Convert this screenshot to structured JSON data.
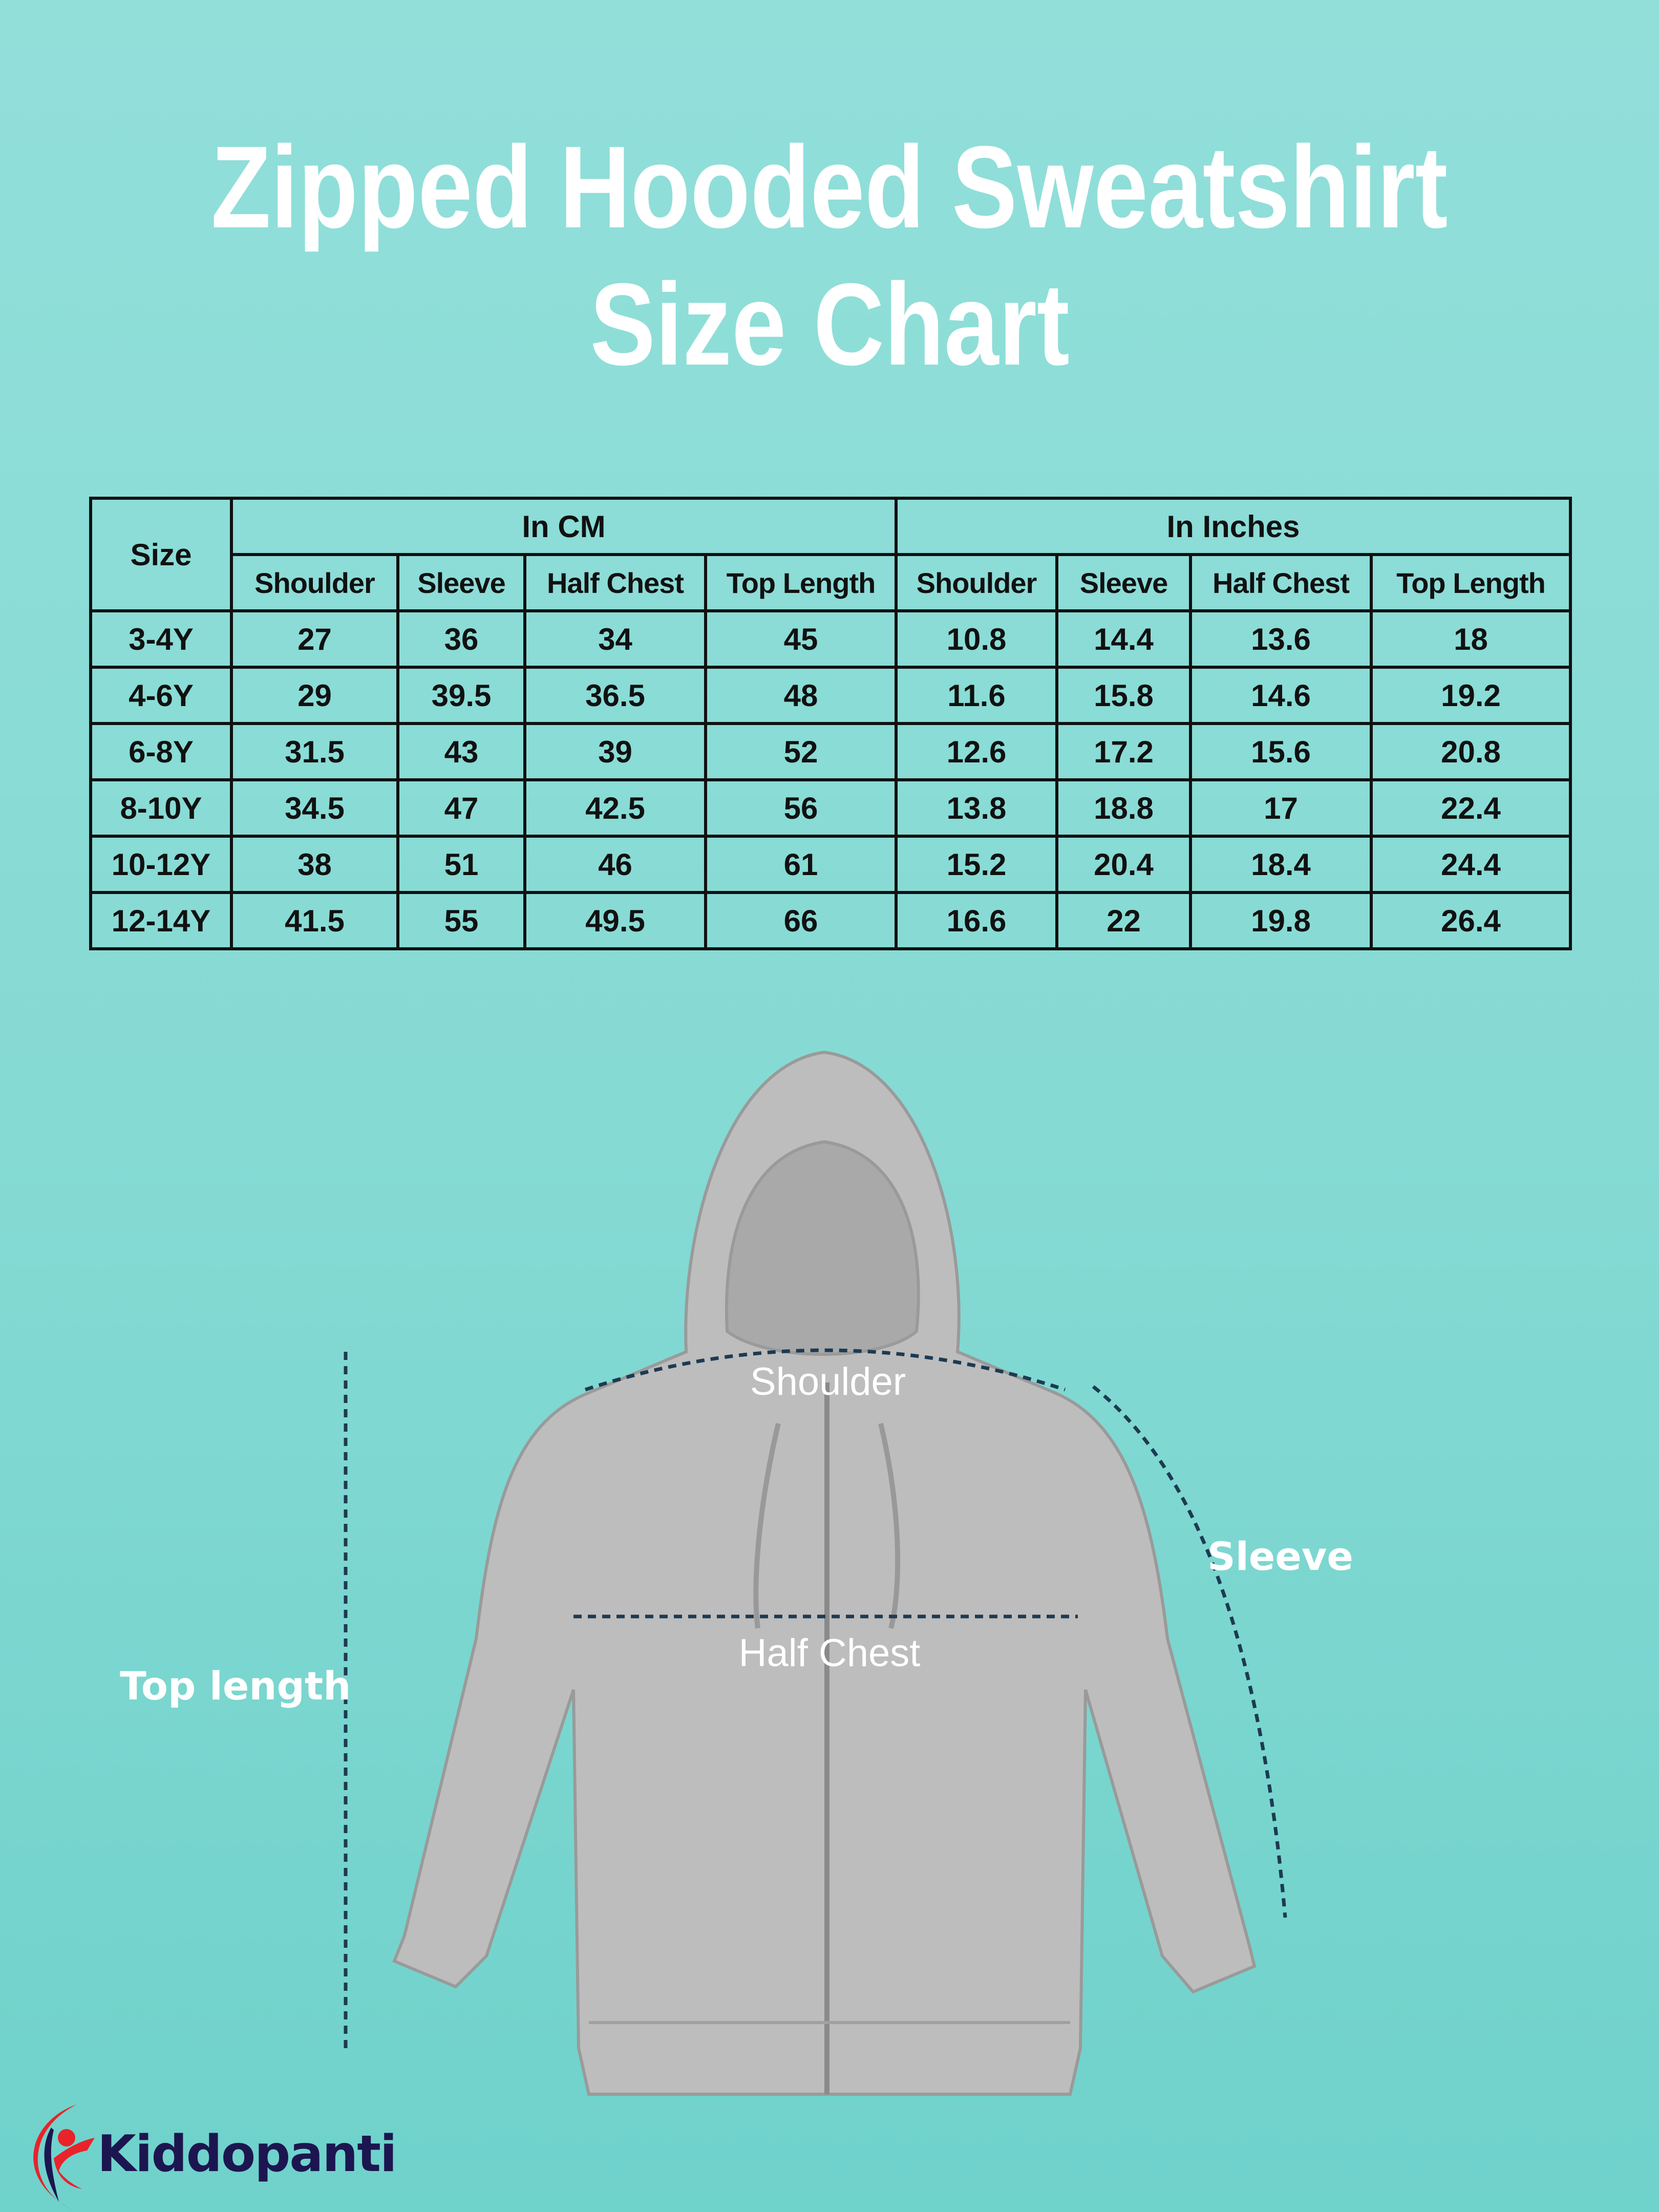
{
  "title": {
    "line1": "Zipped Hooded Sweatshirt",
    "line2": "Size Chart"
  },
  "table": {
    "size_header": "Size",
    "group_headers": [
      "In CM",
      "In Inches"
    ],
    "sub_headers": [
      "Shoulder",
      "Sleeve",
      "Half Chest",
      "Top Length",
      "Shoulder",
      "Sleeve",
      "Half Chest",
      "Top Length"
    ],
    "rows": [
      [
        "3-4Y",
        "27",
        "36",
        "34",
        "45",
        "10.8",
        "14.4",
        "13.6",
        "18"
      ],
      [
        "4-6Y",
        "29",
        "39.5",
        "36.5",
        "48",
        "11.6",
        "15.8",
        "14.6",
        "19.2"
      ],
      [
        "6-8Y",
        "31.5",
        "43",
        "39",
        "52",
        "12.6",
        "17.2",
        "15.6",
        "20.8"
      ],
      [
        "8-10Y",
        "34.5",
        "47",
        "42.5",
        "56",
        "13.8",
        "18.8",
        "17",
        "22.4"
      ],
      [
        "10-12Y",
        "38",
        "51",
        "46",
        "61",
        "15.2",
        "20.4",
        "18.4",
        "24.4"
      ],
      [
        "12-14Y",
        "41.5",
        "55",
        "49.5",
        "66",
        "16.6",
        "22",
        "19.8",
        "26.4"
      ]
    ]
  },
  "diagram": {
    "shoulder": "Shoulder",
    "half_chest": "Half Chest",
    "sleeve": "Sleeve",
    "top_length": "Top length"
  },
  "brand": {
    "name": "Kiddopanti",
    "colors": {
      "navy": "#1c1650",
      "red": "#e8232a"
    }
  },
  "colors": {
    "garment": "#b9b9b9",
    "arrow": "#1d3a52"
  }
}
